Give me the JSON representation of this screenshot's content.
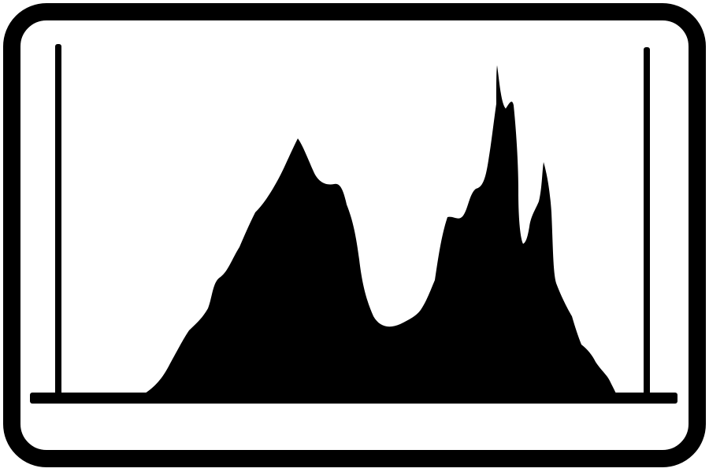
{
  "icon": {
    "name": "histogram-icon",
    "stroke_color": "#000000",
    "fill_color": "#000000",
    "background_color": "#ffffff"
  }
}
